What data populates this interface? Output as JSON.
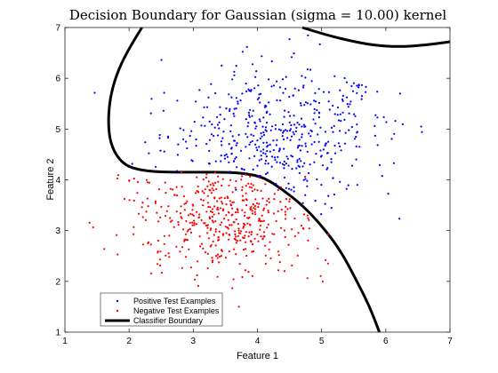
{
  "chart_data": {
    "type": "scatter",
    "title": "Decision Boundary for Gaussian (sigma = 10.00) kernel",
    "xlabel": "Feature 1",
    "ylabel": "Feature 2",
    "xlim": [
      1,
      7
    ],
    "ylim": [
      1,
      7
    ],
    "xticks": [
      "1",
      "2",
      "3",
      "4",
      "5",
      "6",
      "7"
    ],
    "yticks": [
      "1",
      "2",
      "3",
      "4",
      "5",
      "6",
      "7"
    ],
    "grid": false,
    "legend_position": "bottom-left",
    "series": [
      {
        "name": "Positive Test Examples",
        "color": "#0000ff",
        "marker": "dot",
        "center": [
          4.3,
          4.9
        ],
        "spread": [
          0.85,
          0.65
        ],
        "count": 480,
        "region": "above-boundary"
      },
      {
        "name": "Negative Test Examples",
        "color": "#ff0000",
        "marker": "dot",
        "center": [
          3.5,
          3.3
        ],
        "spread": [
          0.75,
          0.6
        ],
        "count": 460,
        "region": "below-boundary"
      },
      {
        "name": "Classifier Boundary",
        "color": "#000000",
        "type": "line",
        "segments": [
          {
            "points": [
              [
                2.2,
                7.0
              ],
              [
                1.95,
                6.5
              ],
              [
                1.75,
                5.9
              ],
              [
                1.67,
                5.3
              ],
              [
                1.7,
                4.7
              ],
              [
                1.9,
                4.3
              ],
              [
                2.2,
                4.18
              ],
              [
                2.6,
                4.15
              ],
              [
                3.1,
                4.15
              ],
              [
                3.5,
                4.15
              ],
              [
                3.8,
                4.13
              ],
              [
                4.1,
                4.05
              ],
              [
                4.4,
                3.8
              ],
              [
                4.7,
                3.5
              ],
              [
                5.0,
                3.1
              ],
              [
                5.3,
                2.6
              ],
              [
                5.55,
                2.0
              ],
              [
                5.75,
                1.5
              ],
              [
                5.9,
                1.0
              ]
            ]
          },
          {
            "points": [
              [
                4.7,
                7.0
              ],
              [
                5.0,
                6.88
              ],
              [
                5.4,
                6.75
              ],
              [
                5.8,
                6.65
              ],
              [
                6.2,
                6.62
              ],
              [
                6.6,
                6.65
              ],
              [
                7.0,
                6.72
              ]
            ]
          }
        ]
      }
    ]
  }
}
